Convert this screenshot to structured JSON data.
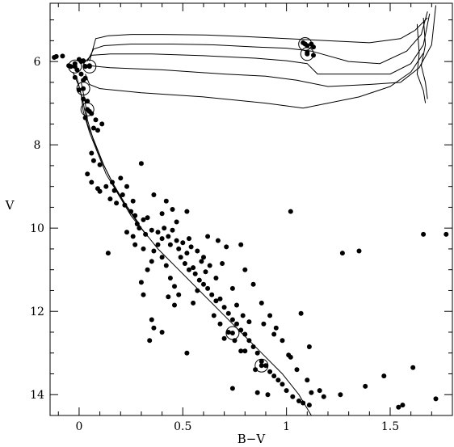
{
  "chart_data": {
    "type": "scatter",
    "title": "",
    "xlabel": "B−V",
    "ylabel": "V",
    "xlim": [
      -0.14,
      1.8
    ],
    "ylim": [
      14.5,
      4.6
    ],
    "y_inverted": true,
    "grid": false,
    "x_ticks": [
      {
        "value": 0,
        "label": "0"
      },
      {
        "value": 0.5,
        "label": "0.5"
      },
      {
        "value": 1,
        "label": "1"
      },
      {
        "value": 1.5,
        "label": "1.5"
      }
    ],
    "y_ticks": [
      {
        "value": 6,
        "label": "6"
      },
      {
        "value": 8,
        "label": "8"
      },
      {
        "value": 10,
        "label": "10"
      },
      {
        "value": 12,
        "label": "12"
      },
      {
        "value": 14,
        "label": "14"
      }
    ],
    "colors": {
      "marks": "#000000",
      "background": "#ffffff"
    },
    "stars": [
      [
        -0.12,
        5.9
      ],
      [
        -0.11,
        5.88
      ],
      [
        -0.08,
        5.87
      ],
      [
        -0.05,
        6.1
      ],
      [
        -0.04,
        6.12
      ],
      [
        -0.02,
        6.05
      ],
      [
        -0.01,
        6.2
      ],
      [
        0.0,
        5.95
      ],
      [
        0.01,
        6.0
      ],
      [
        0.02,
        5.98
      ],
      [
        0.03,
        6.12
      ],
      [
        0.05,
        6.1
      ],
      [
        -0.02,
        6.38
      ],
      [
        0.01,
        6.3
      ],
      [
        0.02,
        6.45
      ],
      [
        0.03,
        6.4
      ],
      [
        0.0,
        6.68
      ],
      [
        0.02,
        6.9
      ],
      [
        0.04,
        6.95
      ],
      [
        0.05,
        7.2
      ],
      [
        0.03,
        7.35
      ],
      [
        0.06,
        7.25
      ],
      [
        0.08,
        7.4
      ],
      [
        0.07,
        7.6
      ],
      [
        0.09,
        7.65
      ],
      [
        0.11,
        7.5
      ],
      [
        0.06,
        8.2
      ],
      [
        0.07,
        8.38
      ],
      [
        0.1,
        8.48
      ],
      [
        0.04,
        8.7
      ],
      [
        0.06,
        8.9
      ],
      [
        0.09,
        9.05
      ],
      [
        0.1,
        9.12
      ],
      [
        0.13,
        9.0
      ],
      [
        0.16,
        8.9
      ],
      [
        0.17,
        9.1
      ],
      [
        0.15,
        9.3
      ],
      [
        0.18,
        9.4
      ],
      [
        0.21,
        9.2
      ],
      [
        0.22,
        9.45
      ],
      [
        0.2,
        8.8
      ],
      [
        0.23,
        9.0
      ],
      [
        0.26,
        9.35
      ],
      [
        0.25,
        9.6
      ],
      [
        0.27,
        9.7
      ],
      [
        0.28,
        9.9
      ],
      [
        0.31,
        9.8
      ],
      [
        0.3,
        8.45
      ],
      [
        0.33,
        9.75
      ],
      [
        0.23,
        10.1
      ],
      [
        0.26,
        10.2
      ],
      [
        0.29,
        10.0
      ],
      [
        0.32,
        10.15
      ],
      [
        0.35,
        10.05
      ],
      [
        0.38,
        10.1
      ],
      [
        0.41,
        10.0
      ],
      [
        0.4,
        10.25
      ],
      [
        0.43,
        10.2
      ],
      [
        0.44,
        10.4
      ],
      [
        0.45,
        10.05
      ],
      [
        0.47,
        10.3
      ],
      [
        0.48,
        10.5
      ],
      [
        0.5,
        10.35
      ],
      [
        0.52,
        10.6
      ],
      [
        0.54,
        10.45
      ],
      [
        0.49,
        10.7
      ],
      [
        0.51,
        10.85
      ],
      [
        0.53,
        11.0
      ],
      [
        0.55,
        10.95
      ],
      [
        0.56,
        11.1
      ],
      [
        0.58,
        11.25
      ],
      [
        0.6,
        11.35
      ],
      [
        0.57,
        11.5
      ],
      [
        0.62,
        11.45
      ],
      [
        0.64,
        11.6
      ],
      [
        0.66,
        11.75
      ],
      [
        0.68,
        11.7
      ],
      [
        0.7,
        11.9
      ],
      [
        0.72,
        12.05
      ],
      [
        0.74,
        12.2
      ],
      [
        0.76,
        12.3
      ],
      [
        0.78,
        12.45
      ],
      [
        0.8,
        12.55
      ],
      [
        0.82,
        12.7
      ],
      [
        0.84,
        12.85
      ],
      [
        0.86,
        13.0
      ],
      [
        0.88,
        13.2
      ],
      [
        0.9,
        13.3
      ],
      [
        0.92,
        13.45
      ],
      [
        0.94,
        13.55
      ],
      [
        0.96,
        13.65
      ],
      [
        0.98,
        13.75
      ],
      [
        1.0,
        13.9
      ],
      [
        1.03,
        14.05
      ],
      [
        1.06,
        14.15
      ],
      [
        1.08,
        14.2
      ],
      [
        1.11,
        14.25
      ],
      [
        1.12,
        13.95
      ],
      [
        0.33,
        11.0
      ],
      [
        0.35,
        10.8
      ],
      [
        0.36,
        10.55
      ],
      [
        0.38,
        10.4
      ],
      [
        0.4,
        10.7
      ],
      [
        0.42,
        10.9
      ],
      [
        0.44,
        11.2
      ],
      [
        0.46,
        11.4
      ],
      [
        0.48,
        11.6
      ],
      [
        0.55,
        11.8
      ],
      [
        0.65,
        12.1
      ],
      [
        0.68,
        12.3
      ],
      [
        0.72,
        12.5
      ],
      [
        0.75,
        12.7
      ],
      [
        0.8,
        12.95
      ],
      [
        0.85,
        13.4
      ],
      [
        0.3,
        11.3
      ],
      [
        0.31,
        11.6
      ],
      [
        0.35,
        12.2
      ],
      [
        0.36,
        12.4
      ],
      [
        0.34,
        12.7
      ],
      [
        0.4,
        12.5
      ],
      [
        0.52,
        13.0
      ],
      [
        0.74,
        13.85
      ],
      [
        0.86,
        13.95
      ],
      [
        0.91,
        14.0
      ],
      [
        1.02,
        9.6
      ],
      [
        1.07,
        12.05
      ],
      [
        1.11,
        12.85
      ],
      [
        1.27,
        10.6
      ],
      [
        1.35,
        10.55
      ],
      [
        1.66,
        10.15
      ],
      [
        1.77,
        10.15
      ],
      [
        1.47,
        13.55
      ],
      [
        1.56,
        14.25
      ],
      [
        1.61,
        13.35
      ],
      [
        1.72,
        14.1
      ],
      [
        1.01,
        13.05
      ],
      [
        1.26,
        14.0
      ],
      [
        1.38,
        13.8
      ],
      [
        1.54,
        14.3
      ],
      [
        0.14,
        10.6
      ],
      [
        0.53,
        10.25
      ],
      [
        0.57,
        10.55
      ],
      [
        0.59,
        10.8
      ],
      [
        0.61,
        11.05
      ],
      [
        0.63,
        10.9
      ],
      [
        0.66,
        11.2
      ],
      [
        0.69,
        10.85
      ],
      [
        0.71,
        10.45
      ],
      [
        0.78,
        10.4
      ],
      [
        0.8,
        11.0
      ],
      [
        0.84,
        11.35
      ],
      [
        0.88,
        11.8
      ],
      [
        0.92,
        12.1
      ],
      [
        0.95,
        12.4
      ],
      [
        0.98,
        12.7
      ],
      [
        1.02,
        13.1
      ],
      [
        1.05,
        13.4
      ],
      [
        1.1,
        13.65
      ],
      [
        1.16,
        13.9
      ],
      [
        1.18,
        14.05
      ],
      [
        0.74,
        11.45
      ],
      [
        0.76,
        11.85
      ],
      [
        0.79,
        12.1
      ],
      [
        0.82,
        12.25
      ],
      [
        0.7,
        12.65
      ],
      [
        0.78,
        12.95
      ],
      [
        0.89,
        12.3
      ],
      [
        0.94,
        12.55
      ],
      [
        0.6,
        10.7
      ],
      [
        0.62,
        10.2
      ],
      [
        0.67,
        10.3
      ],
      [
        0.45,
        9.55
      ],
      [
        0.4,
        9.65
      ],
      [
        0.47,
        9.85
      ],
      [
        0.36,
        9.2
      ],
      [
        0.42,
        9.35
      ],
      [
        0.52,
        9.6
      ],
      [
        0.31,
        10.5
      ],
      [
        0.27,
        10.4
      ],
      [
        0.46,
        11.85
      ],
      [
        0.43,
        11.65
      ],
      [
        1.08,
        5.55
      ],
      [
        1.1,
        5.62
      ],
      [
        1.12,
        5.58
      ],
      [
        1.13,
        5.85
      ],
      [
        1.1,
        5.78
      ],
      [
        1.13,
        5.65
      ]
    ],
    "circled_stars": [
      [
        -0.02,
        6.12
      ],
      [
        0.05,
        6.12
      ],
      [
        0.02,
        6.65
      ],
      [
        0.04,
        7.15
      ],
      [
        0.74,
        12.52
      ],
      [
        0.88,
        13.3
      ],
      [
        1.09,
        5.58
      ],
      [
        1.1,
        5.82
      ]
    ],
    "isochrones": [
      [
        [
          0.05,
          5.99
        ],
        [
          0.08,
          5.45
        ],
        [
          0.14,
          5.38
        ],
        [
          0.25,
          5.35
        ],
        [
          0.4,
          5.35
        ],
        [
          0.6,
          5.36
        ],
        [
          0.8,
          5.4
        ],
        [
          1.0,
          5.45
        ],
        [
          1.2,
          5.5
        ],
        [
          1.4,
          5.55
        ],
        [
          1.55,
          5.45
        ],
        [
          1.62,
          5.25
        ],
        [
          1.68,
          4.95
        ]
      ],
      [
        [
          0.04,
          5.99
        ],
        [
          0.07,
          5.7
        ],
        [
          0.12,
          5.62
        ],
        [
          0.25,
          5.58
        ],
        [
          0.45,
          5.58
        ],
        [
          0.65,
          5.6
        ],
        [
          0.85,
          5.65
        ],
        [
          1.0,
          5.68
        ],
        [
          1.12,
          5.75
        ],
        [
          1.3,
          6.0
        ],
        [
          1.45,
          6.05
        ],
        [
          1.58,
          5.75
        ],
        [
          1.65,
          5.35
        ],
        [
          1.68,
          4.8
        ]
      ],
      [
        [
          0.03,
          6.0
        ],
        [
          0.06,
          5.85
        ],
        [
          0.15,
          5.82
        ],
        [
          0.35,
          5.82
        ],
        [
          0.6,
          5.86
        ],
        [
          0.85,
          5.92
        ],
        [
          1.0,
          5.98
        ],
        [
          1.1,
          6.05
        ],
        [
          1.15,
          6.3
        ],
        [
          1.35,
          6.3
        ],
        [
          1.5,
          6.3
        ],
        [
          1.6,
          6.05
        ],
        [
          1.66,
          5.6
        ],
        [
          1.69,
          4.85
        ]
      ],
      [
        [
          0.02,
          6.05
        ],
        [
          0.05,
          6.1
        ],
        [
          0.15,
          6.15
        ],
        [
          0.4,
          6.2
        ],
        [
          0.7,
          6.3
        ],
        [
          0.9,
          6.35
        ],
        [
          1.05,
          6.45
        ],
        [
          1.1,
          6.5
        ],
        [
          1.2,
          6.6
        ],
        [
          1.4,
          6.55
        ],
        [
          1.55,
          6.5
        ],
        [
          1.64,
          6.15
        ],
        [
          1.7,
          5.6
        ],
        [
          1.72,
          4.65
        ]
      ],
      [
        [
          0.03,
          6.3
        ],
        [
          0.05,
          6.55
        ],
        [
          0.1,
          6.65
        ],
        [
          0.3,
          6.75
        ],
        [
          0.6,
          6.85
        ],
        [
          0.9,
          7.0
        ],
        [
          1.08,
          7.12
        ],
        [
          1.2,
          7.0
        ],
        [
          1.35,
          6.85
        ],
        [
          1.5,
          6.6
        ],
        [
          1.6,
          6.25
        ],
        [
          1.66,
          5.8
        ]
      ],
      [
        [
          -0.03,
          6.25
        ],
        [
          0.0,
          6.6
        ],
        [
          0.02,
          7.0
        ],
        [
          0.04,
          7.5
        ],
        [
          0.08,
          8.0
        ],
        [
          0.12,
          8.5
        ],
        [
          0.17,
          9.0
        ],
        [
          0.23,
          9.5
        ],
        [
          0.3,
          10.0
        ],
        [
          0.38,
          10.5
        ],
        [
          0.48,
          11.0
        ],
        [
          0.58,
          11.5
        ],
        [
          0.68,
          12.0
        ],
        [
          0.78,
          12.5
        ],
        [
          0.88,
          13.0
        ],
        [
          0.98,
          13.5
        ],
        [
          1.06,
          14.0
        ],
        [
          1.12,
          14.5
        ]
      ],
      [
        [
          -0.01,
          6.4
        ],
        [
          0.01,
          6.8
        ],
        [
          0.02,
          7.2
        ],
        [
          0.05,
          7.7
        ],
        [
          0.09,
          8.2
        ],
        [
          0.13,
          8.7
        ],
        [
          0.19,
          9.2
        ],
        [
          0.25,
          9.7
        ],
        [
          0.33,
          10.2
        ]
      ],
      [
        [
          0.01,
          6.5
        ],
        [
          0.03,
          7.0
        ],
        [
          0.04,
          7.4
        ],
        [
          0.07,
          7.9
        ],
        [
          0.11,
          8.4
        ],
        [
          0.16,
          8.9
        ],
        [
          0.22,
          9.4
        ],
        [
          0.29,
          9.9
        ]
      ],
      [
        [
          1.63,
          5.1
        ],
        [
          1.64,
          5.8
        ],
        [
          1.63,
          6.3
        ],
        [
          1.66,
          6.7
        ],
        [
          1.67,
          7.0
        ]
      ],
      [
        [
          1.66,
          4.95
        ],
        [
          1.67,
          5.6
        ],
        [
          1.65,
          6.1
        ],
        [
          1.67,
          6.5
        ],
        [
          1.68,
          6.9
        ]
      ]
    ]
  }
}
